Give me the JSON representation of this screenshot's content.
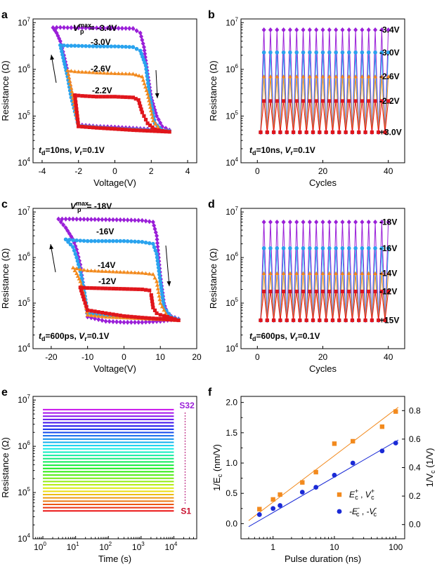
{
  "figure": "multi-panel resistance switching figure",
  "chart_data": [
    {
      "panel": "a",
      "type": "line",
      "xlabel": "Voltage(V)",
      "ylabel": "Resistance (Ω)",
      "xlim": [
        -4.5,
        4.5
      ],
      "ylim": [
        10000,
        12000000
      ],
      "yscale": "log",
      "xticks": [
        -4,
        -2,
        0,
        2,
        4
      ],
      "yticks": [
        10000,
        100000,
        1000000,
        10000000
      ],
      "ytick_labels": [
        "10",
        "10",
        "10",
        "10"
      ],
      "ytick_exps": [
        "4",
        "5",
        "6",
        "7"
      ],
      "series": [
        {
          "name": "-3.4V",
          "color": "#9a1fd8",
          "marker": "diamond",
          "x": [
            -3.4,
            -3,
            -2.6,
            -2.2,
            -1.8,
            -1,
            0,
            1,
            1.4,
            1.6,
            1.8,
            2,
            2.3,
            2.6,
            3,
            2,
            1,
            0,
            -1,
            -2,
            -2.4,
            -2.6,
            -2.8,
            -3,
            -3.2,
            -3.4
          ],
          "y": [
            7800000,
            7900000,
            7800000,
            7800000,
            7700000,
            7700000,
            7600000,
            7500000,
            6000000,
            3000000,
            800000,
            250000,
            100000,
            60000,
            50000,
            52000,
            55000,
            58000,
            60000,
            65000,
            300000,
            900000,
            2000000,
            4000000,
            6000000,
            7800000
          ]
        },
        {
          "name": "-3.0V",
          "color": "#2aa3ee",
          "marker": "circle",
          "x": [
            -3,
            -2.6,
            -2.2,
            -1,
            0,
            1,
            1.4,
            1.7,
            1.9,
            2.2,
            2.6,
            3,
            1,
            0,
            -1,
            -2,
            -2.4,
            -2.6,
            -2.8,
            -3
          ],
          "y": [
            3300000,
            3200000,
            3200000,
            3100000,
            3100000,
            3000000,
            2500000,
            1200000,
            300000,
            70000,
            50000,
            48000,
            52000,
            54000,
            58000,
            62000,
            250000,
            700000,
            1500000,
            3300000
          ]
        },
        {
          "name": "-2.6V",
          "color": "#f28a1e",
          "marker": "triangle",
          "x": [
            -2.6,
            -2.2,
            -1,
            0,
            1,
            1.5,
            1.8,
            2.1,
            2.5,
            3,
            1,
            0,
            -1,
            -2,
            -2.2,
            -2.4,
            -2.6
          ],
          "y": [
            950000,
            900000,
            850000,
            820000,
            800000,
            700000,
            300000,
            80000,
            50000,
            47000,
            51000,
            54000,
            57000,
            62000,
            150000,
            400000,
            950000
          ]
        },
        {
          "name": "-2.2V",
          "color": "#e0151b",
          "marker": "square",
          "x": [
            -2.2,
            -1.8,
            -1,
            0,
            1,
            1.3,
            1.5,
            1.8,
            2.2,
            2.6,
            3,
            1,
            0,
            -1,
            -2,
            -2.2
          ],
          "y": [
            280000,
            270000,
            260000,
            260000,
            250000,
            220000,
            120000,
            70000,
            52000,
            48000,
            46000,
            50000,
            53000,
            56000,
            60000,
            280000
          ]
        }
      ],
      "annotations": [
        {
          "text": "V",
          "sub": "p",
          "sup": "max",
          "suffix": "= -3.4V"
        },
        {
          "text": "-3.0V"
        },
        {
          "text": "-2.6V"
        },
        {
          "text": "-2.2V"
        }
      ],
      "note": {
        "t": "t",
        "tsub": "d",
        "tval": "=10ns",
        "v": "V",
        "vsub": "r",
        "vval": "=0.1V"
      }
    },
    {
      "panel": "b",
      "type": "line",
      "xlabel": "Cycles",
      "ylabel": "Resistance (Ω)",
      "xlim": [
        -5,
        45
      ],
      "ylim": [
        10000,
        12000000
      ],
      "yscale": "log",
      "xticks": [
        0,
        20,
        40
      ],
      "yticks": [
        10000,
        100000,
        1000000,
        10000000
      ],
      "ytick_labels": [
        "10",
        "10",
        "10",
        "10"
      ],
      "ytick_exps": [
        "4",
        "5",
        "6",
        "7"
      ],
      "cycles": 40,
      "cycle_start": 1,
      "series": [
        {
          "name": "-3.4V",
          "color": "#9a1fd8",
          "marker": "diamond",
          "high": 7000000,
          "low": 45000
        },
        {
          "name": "-3.0V",
          "color": "#2aa3ee",
          "marker": "circle",
          "high": 2300000,
          "low": 45000
        },
        {
          "name": "-2.6V",
          "color": "#f28a1e",
          "marker": "triangle",
          "high": 700000,
          "low": 45000
        },
        {
          "name": "-2.2V",
          "color": "#e0151b",
          "marker": "square",
          "high": 210000,
          "low": 45000
        }
      ],
      "right_labels": [
        "-3.4V",
        "-3.0V",
        "-2.6V",
        "-2.2V",
        "+3.0V"
      ],
      "note": {
        "t": "t",
        "tsub": "d",
        "tval": "=10ns",
        "v": "V",
        "vsub": "r",
        "vval": "=0.1V"
      }
    },
    {
      "panel": "c",
      "type": "line",
      "xlabel": "Voltage(V)",
      "ylabel": "Resistance (Ω)",
      "xlim": [
        -25,
        20
      ],
      "ylim": [
        10000,
        12000000
      ],
      "yscale": "log",
      "xticks": [
        -20,
        -10,
        0,
        10,
        20
      ],
      "yticks": [
        10000,
        100000,
        1000000,
        10000000
      ],
      "ytick_labels": [
        "10",
        "10",
        "10",
        "10"
      ],
      "ytick_exps": [
        "4",
        "5",
        "6",
        "7"
      ],
      "series": [
        {
          "name": "-18V",
          "color": "#9a1fd8",
          "marker": "diamond",
          "x": [
            -18,
            -15,
            -10,
            -5,
            0,
            5,
            8,
            9,
            10,
            11,
            12,
            15,
            10,
            5,
            0,
            -5,
            -10,
            -11,
            -12,
            -13,
            -14,
            -16,
            -18
          ],
          "y": [
            7000000,
            7000000,
            6900000,
            6800000,
            6700000,
            6500000,
            6000000,
            3000000,
            400000,
            100000,
            55000,
            45000,
            40000,
            38000,
            38000,
            40000,
            50000,
            200000,
            700000,
            1500000,
            2500000,
            4500000,
            7000000
          ]
        },
        {
          "name": "-16V",
          "color": "#2aa3ee",
          "marker": "circle",
          "x": [
            -16,
            -14,
            -10,
            -5,
            0,
            5,
            8,
            9,
            10,
            11,
            13,
            15,
            10,
            5,
            0,
            -5,
            -10,
            -11,
            -12,
            -13,
            -14,
            -16
          ],
          "y": [
            2500000,
            2400000,
            2300000,
            2300000,
            2300000,
            2200000,
            2000000,
            1200000,
            300000,
            80000,
            50000,
            44000,
            45000,
            47000,
            49000,
            52000,
            60000,
            200000,
            500000,
            1000000,
            1700000,
            2500000
          ]
        },
        {
          "name": "-14V",
          "color": "#f28a1e",
          "marker": "triangle",
          "x": [
            -14,
            -12,
            -10,
            -5,
            0,
            5,
            8,
            9,
            10,
            12,
            15,
            10,
            5,
            0,
            -5,
            -10,
            -11,
            -12,
            -13,
            -14
          ],
          "y": [
            600000,
            550000,
            520000,
            500000,
            480000,
            460000,
            430000,
            300000,
            100000,
            50000,
            42000,
            44000,
            46000,
            48000,
            50000,
            55000,
            150000,
            300000,
            450000,
            600000
          ]
        },
        {
          "name": "-12V",
          "color": "#e0151b",
          "marker": "square",
          "x": [
            -12,
            -10,
            -5,
            0,
            5,
            7,
            7.5,
            8,
            9,
            10,
            12,
            15,
            10,
            5,
            0,
            -5,
            -10,
            -11,
            -12
          ],
          "y": [
            220000,
            215000,
            210000,
            205000,
            200000,
            190000,
            150000,
            80000,
            60000,
            55000,
            50000,
            42000,
            45000,
            48000,
            52000,
            60000,
            70000,
            120000,
            220000
          ]
        }
      ],
      "annotations": [
        {
          "text": "V",
          "sub": "p",
          "sup": "max",
          "suffix": "= -18V"
        },
        {
          "text": "-16V"
        },
        {
          "text": "-14V"
        },
        {
          "text": "-12V"
        }
      ],
      "note": {
        "t": "t",
        "tsub": "d",
        "tval": "=600ps",
        "v": "V",
        "vsub": "r",
        "vval": "=0.1V"
      }
    },
    {
      "panel": "d",
      "type": "line",
      "xlabel": "Cycles",
      "ylabel": "Resistance (Ω)",
      "xlim": [
        -5,
        45
      ],
      "ylim": [
        10000,
        12000000
      ],
      "yscale": "log",
      "xticks": [
        0,
        20,
        40
      ],
      "yticks": [
        10000,
        100000,
        1000000,
        10000000
      ],
      "ytick_labels": [
        "10",
        "10",
        "10",
        "10"
      ],
      "ytick_exps": [
        "4",
        "5",
        "6",
        "7"
      ],
      "cycles": 40,
      "cycle_start": 1,
      "series": [
        {
          "name": "-18V",
          "color": "#9a1fd8",
          "marker": "diamond",
          "high": 6000000,
          "low": 42000
        },
        {
          "name": "-16V",
          "color": "#2aa3ee",
          "marker": "circle",
          "high": 1600000,
          "low": 42000
        },
        {
          "name": "-14V",
          "color": "#f28a1e",
          "marker": "triangle",
          "high": 450000,
          "low": 42000
        },
        {
          "name": "-12V",
          "color": "#e0151b",
          "marker": "square",
          "high": 180000,
          "low": 42000
        }
      ],
      "right_labels": [
        "-18V",
        "-16V",
        "-14V",
        "-12V",
        "+15V"
      ],
      "note": {
        "t": "t",
        "tsub": "d",
        "tval": "=600ps",
        "v": "V",
        "vsub": "r",
        "vval": "=0.1V"
      }
    },
    {
      "panel": "e",
      "type": "line",
      "xlabel": "Time (s)",
      "ylabel": "Resistance (Ω)",
      "xlim": [
        0.5,
        50000
      ],
      "ylim": [
        10000,
        12000000
      ],
      "xscale": "log",
      "yscale": "log",
      "xticks": [
        1,
        10,
        100,
        1000,
        10000
      ],
      "xtick_labels": [
        "10",
        "10",
        "10",
        "10",
        "10"
      ],
      "xtick_exps": [
        "0",
        "1",
        "2",
        "3",
        "4"
      ],
      "yticks": [
        10000,
        100000,
        1000000,
        10000000
      ],
      "ytick_labels": [
        "10",
        "10",
        "10",
        "10"
      ],
      "ytick_exps": [
        "4",
        "5",
        "6",
        "7"
      ],
      "states": 32,
      "r_low": 40000,
      "r_high": 6200000,
      "t_start": 1,
      "t_end": 10000,
      "state_labels": {
        "top": "S32",
        "bottom": "S1"
      }
    },
    {
      "panel": "f",
      "type": "scatter",
      "xlabel": "Pulse duration (ns)",
      "ylabel": "1/E",
      "ylabel_sub": "c",
      "ylabel_unit": " (nm/V)",
      "y2label": "1/V",
      "y2label_sub": "c",
      "y2label_unit": " (1/V)",
      "xlim": [
        0.3,
        140
      ],
      "ylim": [
        -0.25,
        2.1
      ],
      "xscale": "log",
      "xticks": [
        1,
        10,
        100
      ],
      "xtick_labels": [
        "1",
        "10",
        "100"
      ],
      "yticks": [
        0.0,
        0.5,
        1.0,
        1.5,
        2.0
      ],
      "ytick_labels": [
        "0.0",
        "0.5",
        "1.0",
        "1.5",
        "2.0"
      ],
      "y2lim": [
        -0.1,
        0.9
      ],
      "y2ticks": [
        0.0,
        0.2,
        0.4,
        0.6,
        0.8
      ],
      "y2tick_labels": [
        "0.0",
        "0.2",
        "0.4",
        "0.6",
        "0.8"
      ],
      "series": [
        {
          "name": "E_c^+ , V_c^+",
          "color": "#f28a1e",
          "marker": "square",
          "x": [
            0.6,
            1.0,
            1.3,
            3.0,
            5.0,
            10.0,
            20.0,
            60.0,
            100.0
          ],
          "y": [
            0.24,
            0.4,
            0.48,
            0.68,
            0.85,
            1.32,
            1.36,
            1.6,
            1.85
          ],
          "fit": [
            [
              0.4,
              0.05
            ],
            [
              110,
              1.92
            ]
          ]
        },
        {
          "name": "-E_c^- , -V_c^-",
          "color": "#1a2ad6",
          "marker": "circle",
          "x": [
            0.6,
            1.0,
            1.3,
            3.0,
            5.0,
            10.0,
            20.0,
            60.0,
            100.0
          ],
          "y": [
            0.15,
            0.25,
            0.3,
            0.52,
            0.6,
            0.8,
            1.0,
            1.2,
            1.33
          ],
          "fit": [
            [
              0.4,
              -0.05
            ],
            [
              110,
              1.38
            ]
          ]
        }
      ],
      "legend": [
        {
          "label": "E",
          "sub": "c",
          "sup": "+",
          "sep": " , ",
          "label2": "V",
          "sub2": "c",
          "sup2": "+"
        },
        {
          "label": "-E",
          "sub": "c",
          "sup": "-",
          "sep": " , ",
          "label2": "-V",
          "sub2": "c",
          "sup2": "-"
        }
      ]
    }
  ],
  "panel_letters": [
    "a",
    "b",
    "c",
    "d",
    "e",
    "f"
  ]
}
